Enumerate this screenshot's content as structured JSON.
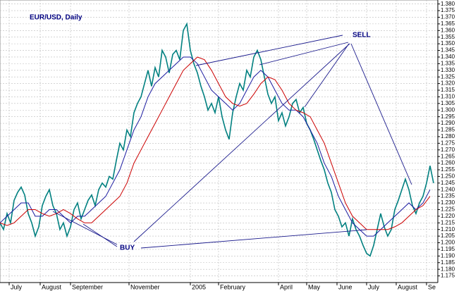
{
  "chart_data": {
    "type": "line",
    "title": "EUR/USD, Daily",
    "annotations": [
      "SELL",
      "BUY"
    ],
    "xlim": [
      0,
      123
    ],
    "xticks": [
      {
        "value": 2.6,
        "label": "July"
      },
      {
        "value": 11.4,
        "label": "August"
      },
      {
        "value": 20,
        "label": "September"
      },
      {
        "value": 36.6,
        "label": "November"
      },
      {
        "value": 54,
        "label": "2005"
      },
      {
        "value": 62,
        "label": "February"
      },
      {
        "value": 79,
        "label": "April"
      },
      {
        "value": 87,
        "label": "May"
      },
      {
        "value": 95.6,
        "label": "June"
      },
      {
        "value": 104,
        "label": "July"
      },
      {
        "value": 112.4,
        "label": "August"
      },
      {
        "value": 121,
        "label": "Se"
      }
    ],
    "ylim": [
      1.17,
      1.383
    ],
    "yticks": [
      {
        "value": 1.175,
        "label": "1.175"
      },
      {
        "value": 1.18,
        "label": "1.180"
      },
      {
        "value": 1.185,
        "label": "1.185"
      },
      {
        "value": 1.19,
        "label": "1.190"
      },
      {
        "value": 1.195,
        "label": "1.195"
      },
      {
        "value": 1.2,
        "label": "1.200"
      },
      {
        "value": 1.205,
        "label": "1.205"
      },
      {
        "value": 1.21,
        "label": "1.210"
      },
      {
        "value": 1.215,
        "label": "1.215"
      },
      {
        "value": 1.22,
        "label": "1.220"
      },
      {
        "value": 1.225,
        "label": "1.225"
      },
      {
        "value": 1.23,
        "label": "1.230"
      },
      {
        "value": 1.235,
        "label": "1.235"
      },
      {
        "value": 1.24,
        "label": "1.240"
      },
      {
        "value": 1.245,
        "label": "1.245"
      },
      {
        "value": 1.25,
        "label": "1.250"
      },
      {
        "value": 1.255,
        "label": "1.255"
      },
      {
        "value": 1.26,
        "label": "1.260"
      },
      {
        "value": 1.265,
        "label": "1.265"
      },
      {
        "value": 1.27,
        "label": "1.270"
      },
      {
        "value": 1.275,
        "label": "1.275"
      },
      {
        "value": 1.28,
        "label": "1.280"
      },
      {
        "value": 1.285,
        "label": "1.285"
      },
      {
        "value": 1.29,
        "label": "1.290"
      },
      {
        "value": 1.295,
        "label": "1.295"
      },
      {
        "value": 1.3,
        "label": "1.300"
      },
      {
        "value": 1.305,
        "label": "1.305"
      },
      {
        "value": 1.31,
        "label": "1.310"
      },
      {
        "value": 1.315,
        "label": "1.315"
      },
      {
        "value": 1.32,
        "label": "1.320"
      },
      {
        "value": 1.325,
        "label": "1.325"
      },
      {
        "value": 1.33,
        "label": "1.330"
      },
      {
        "value": 1.335,
        "label": "1.335"
      },
      {
        "value": 1.34,
        "label": "1.340"
      },
      {
        "value": 1.345,
        "label": "1.345"
      },
      {
        "value": 1.35,
        "label": "1.350"
      },
      {
        "value": 1.355,
        "label": "1.355"
      },
      {
        "value": 1.36,
        "label": "1.360"
      },
      {
        "value": 1.365,
        "label": "1.365"
      },
      {
        "value": 1.37,
        "label": "1.370"
      },
      {
        "value": 1.375,
        "label": "1.375"
      },
      {
        "value": 1.38,
        "label": "1.380"
      }
    ],
    "grid": true,
    "series": [
      {
        "color": "#008080",
        "values": [
          1.215,
          1.21,
          1.222,
          1.215,
          1.232,
          1.238,
          1.242,
          1.236,
          1.222,
          1.215,
          1.205,
          1.212,
          1.228,
          1.235,
          1.24,
          1.228,
          1.222,
          1.21,
          1.215,
          1.205,
          1.212,
          1.225,
          1.23,
          1.218,
          1.225,
          1.232,
          1.236,
          1.228,
          1.24,
          1.245,
          1.242,
          1.25,
          1.248,
          1.262,
          1.275,
          1.27,
          1.285,
          1.28,
          1.298,
          1.305,
          1.31,
          1.32,
          1.33,
          1.318,
          1.332,
          1.325,
          1.345,
          1.34,
          1.328,
          1.342,
          1.345,
          1.338,
          1.36,
          1.365,
          1.345,
          1.335,
          1.328,
          1.318,
          1.31,
          1.3,
          1.305,
          1.298,
          1.31,
          1.295,
          1.285,
          1.278,
          1.298,
          1.31,
          1.32,
          1.315,
          1.33,
          1.325,
          1.34,
          1.345,
          1.338,
          1.325,
          1.312,
          1.305,
          1.31,
          1.292,
          1.298,
          1.288,
          1.295,
          1.305,
          1.308,
          1.298,
          1.302,
          1.29,
          1.285,
          1.278,
          1.27,
          1.262,
          1.255,
          1.245,
          1.238,
          1.225,
          1.22,
          1.212,
          1.215,
          1.205,
          1.218,
          1.21,
          1.205,
          1.198,
          1.192,
          1.19,
          1.198,
          1.21,
          1.222,
          1.212,
          1.205,
          1.21,
          1.225,
          1.232,
          1.24,
          1.248,
          1.24,
          1.228,
          1.222,
          1.23,
          1.235,
          1.245,
          1.258,
          1.245
        ]
      },
      {
        "color": "#1a1aa0",
        "x": [
          0,
          2,
          4,
          6,
          8,
          10,
          12,
          14,
          16,
          18,
          20,
          22,
          24,
          26,
          28,
          30,
          32,
          34,
          36,
          38,
          40,
          42,
          44,
          46,
          48,
          50,
          52,
          54,
          56,
          58,
          60,
          62,
          64,
          66,
          68,
          70,
          72,
          74,
          76,
          78,
          80,
          82,
          84,
          86,
          88,
          90,
          92,
          94,
          96,
          98,
          100,
          102,
          104,
          106,
          108,
          110,
          112,
          114,
          116,
          118,
          120,
          122
        ],
        "values": [
          1.215,
          1.22,
          1.225,
          1.23,
          1.23,
          1.22,
          1.22,
          1.225,
          1.225,
          1.22,
          1.215,
          1.22,
          1.22,
          1.225,
          1.23,
          1.235,
          1.245,
          1.255,
          1.27,
          1.285,
          1.295,
          1.31,
          1.32,
          1.325,
          1.33,
          1.335,
          1.34,
          1.34,
          1.335,
          1.325,
          1.315,
          1.31,
          1.305,
          1.3,
          1.305,
          1.315,
          1.325,
          1.33,
          1.325,
          1.315,
          1.305,
          1.3,
          1.3,
          1.295,
          1.285,
          1.275,
          1.26,
          1.25,
          1.235,
          1.225,
          1.215,
          1.21,
          1.205,
          1.205,
          1.21,
          1.215,
          1.22,
          1.225,
          1.23,
          1.225,
          1.23,
          1.24
        ]
      },
      {
        "color": "#cc0000",
        "x": [
          0,
          2,
          4,
          6,
          8,
          10,
          12,
          14,
          16,
          18,
          20,
          22,
          24,
          26,
          28,
          30,
          32,
          34,
          36,
          38,
          40,
          42,
          44,
          46,
          48,
          50,
          52,
          54,
          56,
          58,
          60,
          62,
          64,
          66,
          68,
          70,
          72,
          74,
          76,
          78,
          80,
          82,
          84,
          86,
          88,
          90,
          92,
          94,
          96,
          98,
          100,
          102,
          104,
          106,
          108,
          110,
          112,
          114,
          116,
          118,
          120,
          122
        ],
        "values": [
          1.215,
          1.213,
          1.215,
          1.22,
          1.225,
          1.225,
          1.222,
          1.22,
          1.222,
          1.225,
          1.222,
          1.218,
          1.215,
          1.215,
          1.22,
          1.225,
          1.23,
          1.235,
          1.245,
          1.26,
          1.27,
          1.28,
          1.29,
          1.3,
          1.31,
          1.32,
          1.33,
          1.335,
          1.34,
          1.338,
          1.33,
          1.32,
          1.31,
          1.305,
          1.303,
          1.305,
          1.312,
          1.32,
          1.325,
          1.323,
          1.315,
          1.305,
          1.3,
          1.298,
          1.295,
          1.285,
          1.275,
          1.26,
          1.245,
          1.23,
          1.22,
          1.215,
          1.21,
          1.21,
          1.21,
          1.21,
          1.212,
          1.215,
          1.22,
          1.225,
          1.228,
          1.235
        ]
      }
    ]
  }
}
